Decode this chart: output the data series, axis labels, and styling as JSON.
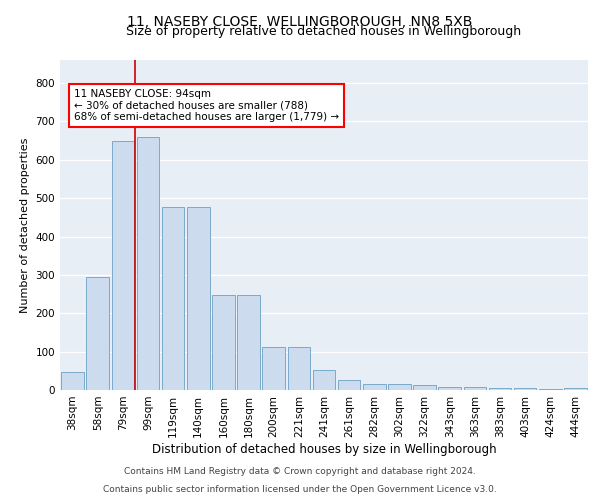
{
  "title1": "11, NASEBY CLOSE, WELLINGBOROUGH, NN8 5XB",
  "title2": "Size of property relative to detached houses in Wellingborough",
  "xlabel": "Distribution of detached houses by size in Wellingborough",
  "ylabel": "Number of detached properties",
  "categories": [
    "38sqm",
    "58sqm",
    "79sqm",
    "99sqm",
    "119sqm",
    "140sqm",
    "160sqm",
    "180sqm",
    "200sqm",
    "221sqm",
    "241sqm",
    "261sqm",
    "282sqm",
    "302sqm",
    "322sqm",
    "343sqm",
    "363sqm",
    "383sqm",
    "403sqm",
    "424sqm",
    "444sqm"
  ],
  "values": [
    47,
    295,
    650,
    660,
    478,
    478,
    248,
    248,
    113,
    113,
    53,
    25,
    15,
    15,
    13,
    7,
    7,
    5,
    5,
    2,
    5
  ],
  "bar_color": "#ccdcee",
  "bar_edge_color": "#7aaacb",
  "red_line_x": 2.5,
  "annotation_line1": "11 NASEBY CLOSE: 94sqm",
  "annotation_line2": "← 30% of detached houses are smaller (788)",
  "annotation_line3": "68% of semi-detached houses are larger (1,779) →",
  "annotation_box_color": "white",
  "annotation_box_edge_color": "red",
  "red_line_color": "#cc0000",
  "ylim": [
    0,
    860
  ],
  "yticks": [
    0,
    100,
    200,
    300,
    400,
    500,
    600,
    700,
    800
  ],
  "background_color": "#e8eef5",
  "footer_line1": "Contains HM Land Registry data © Crown copyright and database right 2024.",
  "footer_line2": "Contains public sector information licensed under the Open Government Licence v3.0.",
  "title1_fontsize": 10,
  "title2_fontsize": 9,
  "xlabel_fontsize": 8.5,
  "ylabel_fontsize": 8,
  "tick_fontsize": 7.5,
  "footer_fontsize": 6.5,
  "annotation_fontsize": 7.5
}
